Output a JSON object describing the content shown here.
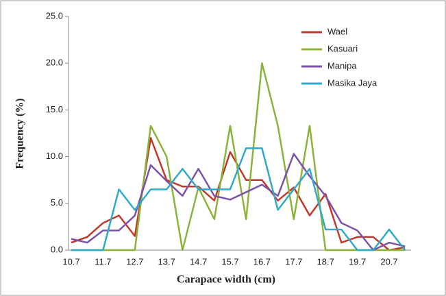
{
  "chart_data": {
    "type": "line",
    "x_label": "Carapace width (cm)",
    "y_label": "Frequency (%)",
    "categories": [
      "10.7",
      null,
      "11.7",
      null,
      "12.7",
      null,
      "13.7",
      null,
      "14.7",
      null,
      "15.7",
      null,
      "16.7",
      null,
      "17.7",
      null,
      "18.7",
      null,
      "19.7",
      null,
      "20.7",
      null
    ],
    "ylim": [
      0,
      25
    ],
    "yticks": [
      {
        "value": 0,
        "label": "0.0"
      },
      {
        "value": 5,
        "label": "5.0"
      },
      {
        "value": 10,
        "label": "10.0"
      },
      {
        "value": 15,
        "label": "15.0"
      },
      {
        "value": 20,
        "label": "20.0"
      },
      {
        "value": 25,
        "label": "25.0"
      }
    ],
    "legend": "upper right",
    "series": [
      {
        "name": "Wael",
        "color": "#c0392b",
        "values": [
          0.8,
          1.4,
          2.9,
          3.7,
          1.5,
          12.0,
          7.5,
          6.8,
          6.8,
          5.3,
          10.5,
          7.5,
          7.5,
          5.3,
          6.7,
          3.7,
          6.0,
          0.8,
          1.4,
          1.4,
          0,
          0.3
        ]
      },
      {
        "name": "Kasuari",
        "color": "#8bb33a",
        "values": [
          0,
          0,
          0,
          0,
          0,
          13.3,
          10.0,
          0,
          6.7,
          3.3,
          13.3,
          3.3,
          20.0,
          13.3,
          3.3,
          13.3,
          0,
          0,
          0,
          0,
          0,
          0
        ]
      },
      {
        "name": "Manipa",
        "color": "#7b52a8",
        "values": [
          1.2,
          0.8,
          2.1,
          2.1,
          3.7,
          9.1,
          7.4,
          5.8,
          8.7,
          5.8,
          5.4,
          6.2,
          7.0,
          5.8,
          10.3,
          7.9,
          5.8,
          2.9,
          2.1,
          0,
          0.8,
          0.4
        ]
      },
      {
        "name": "Masika Jaya",
        "color": "#31a9c8",
        "values": [
          0,
          0,
          0,
          6.5,
          4.3,
          6.5,
          6.5,
          8.7,
          6.5,
          6.5,
          6.5,
          10.9,
          10.9,
          4.3,
          6.5,
          8.7,
          2.2,
          2.2,
          0,
          0,
          2.2,
          0
        ]
      }
    ]
  }
}
